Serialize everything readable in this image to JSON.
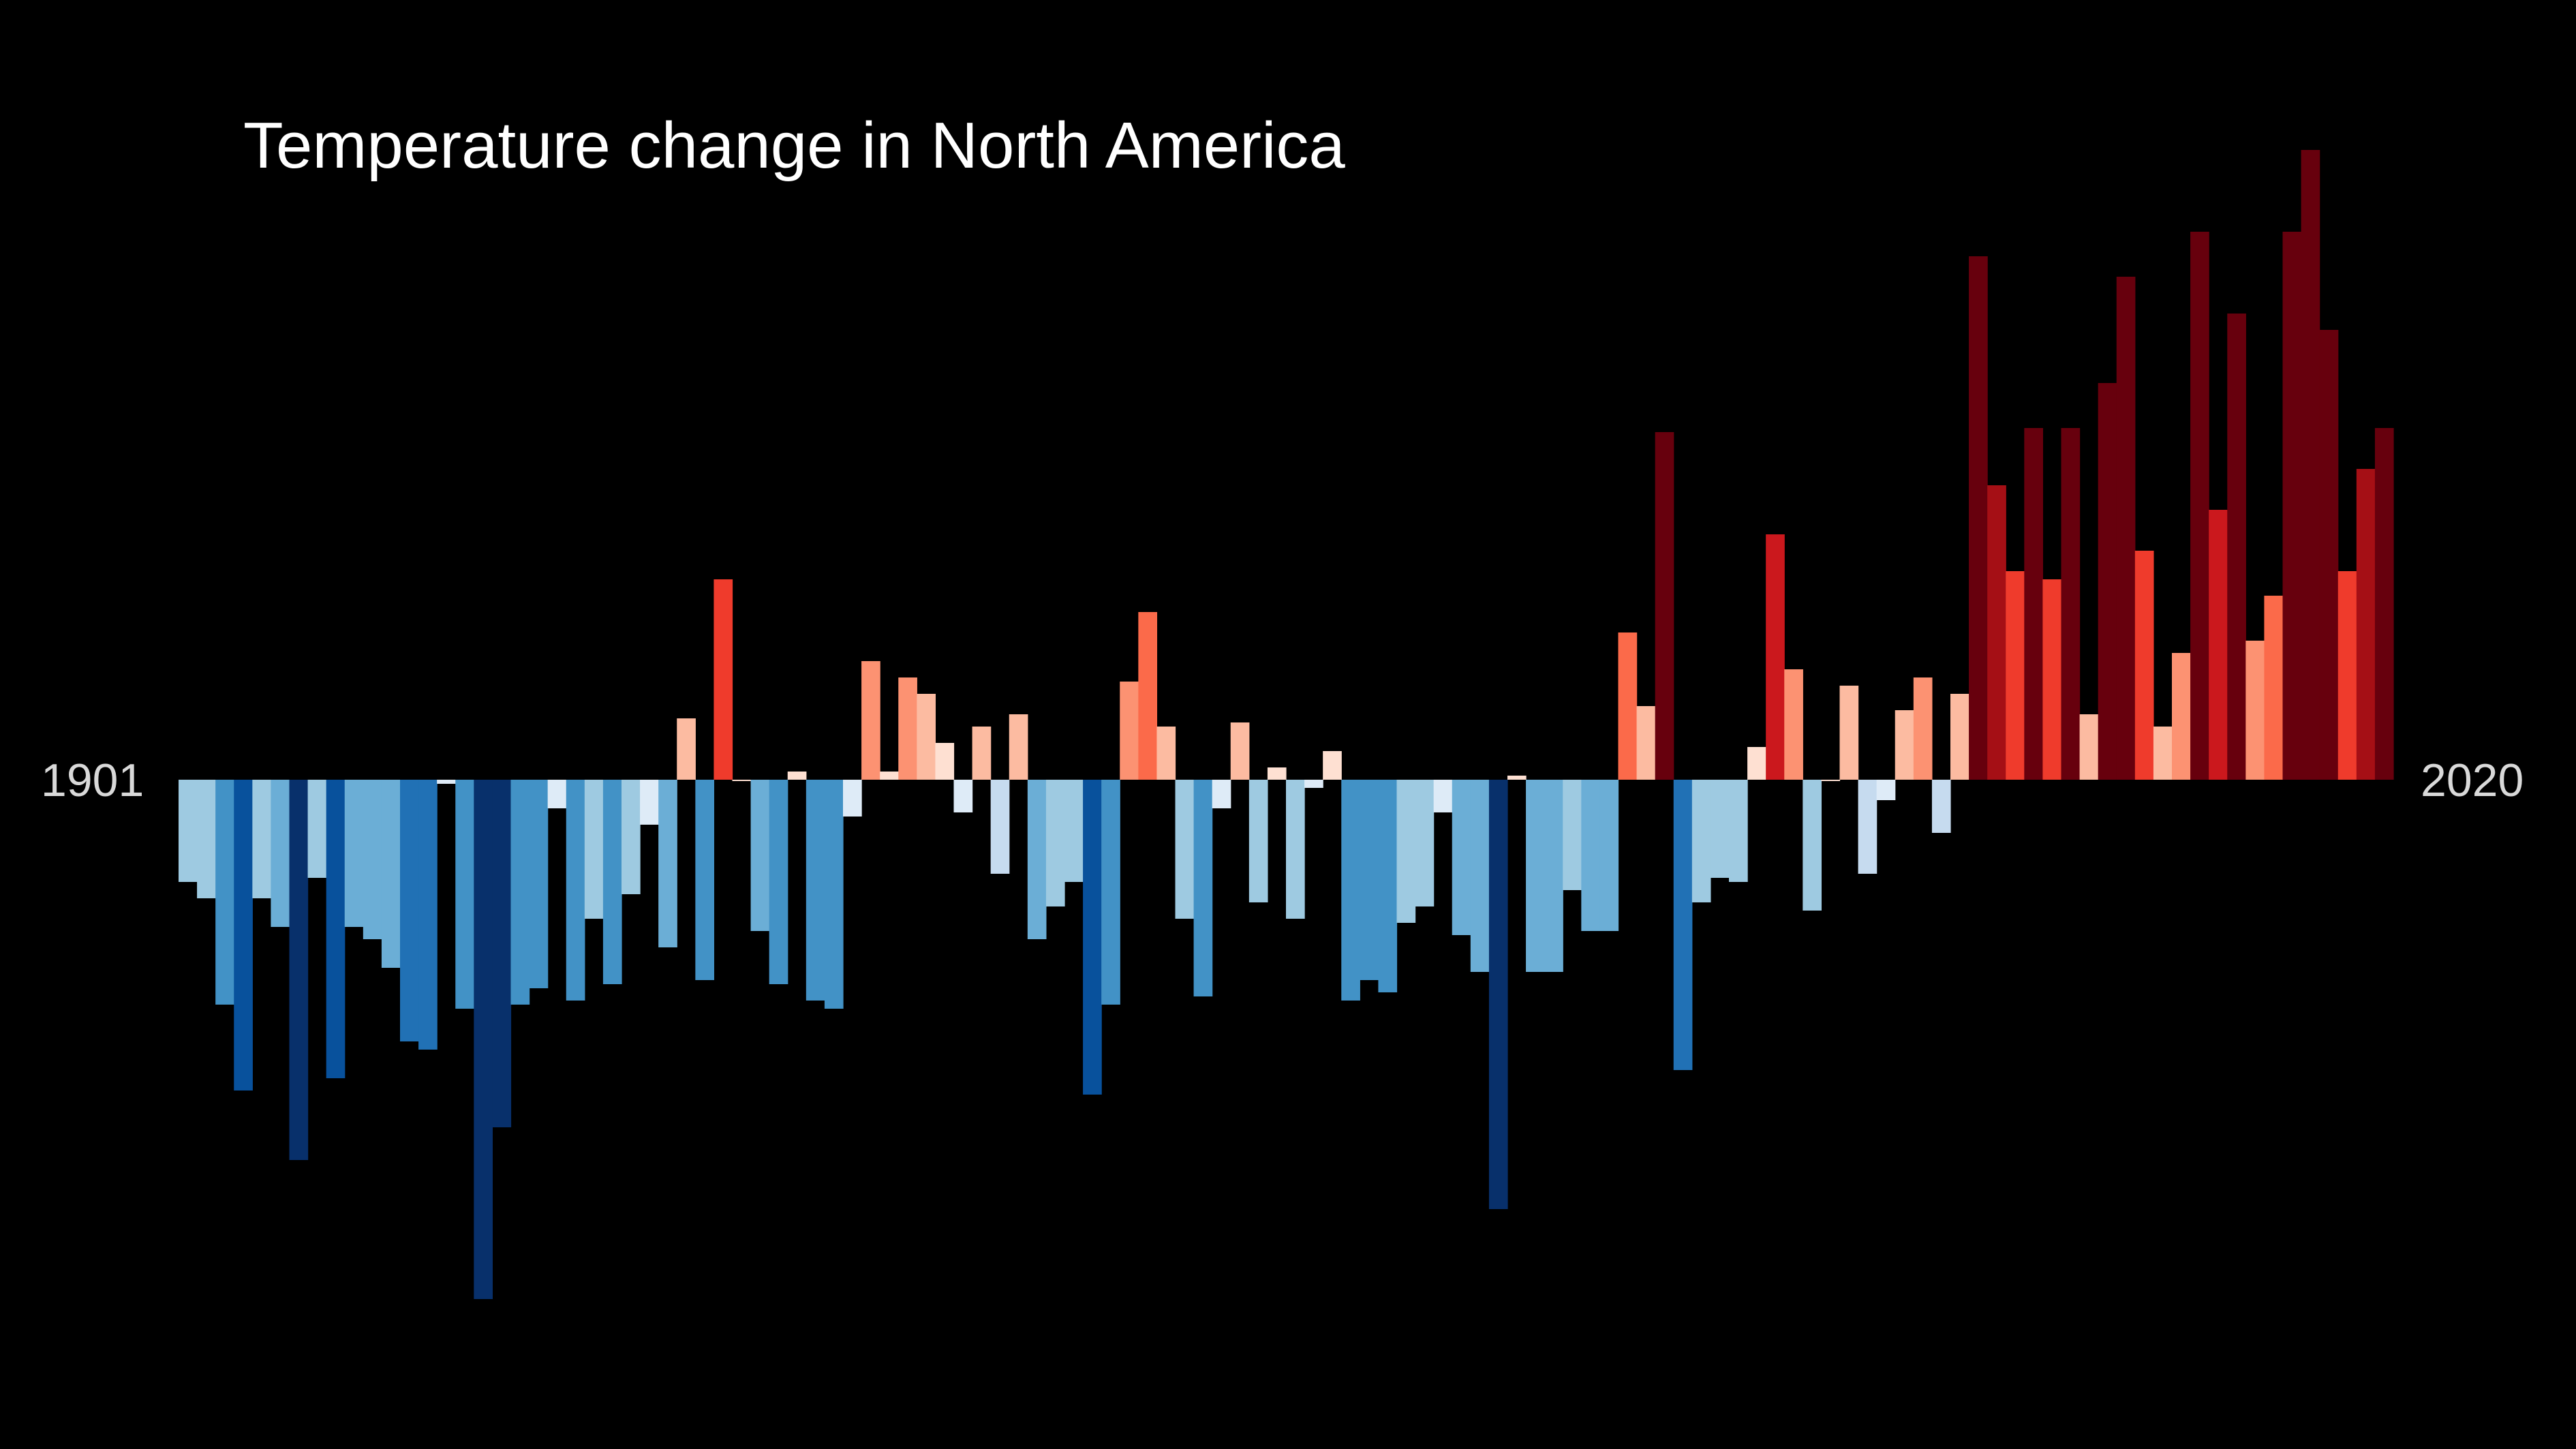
{
  "chart_data": {
    "type": "bar",
    "title": "Temperature change in North America",
    "start_label": "1901",
    "end_label": "2020",
    "year_start": 1901,
    "year_end": 2020,
    "ylim": [
      -1.33,
      1.6
    ],
    "grid": false,
    "legend": "none",
    "background": "#000000",
    "colormap": [
      "#08306b",
      "#08519c",
      "#2171b5",
      "#4292c6",
      "#6baed6",
      "#9ecae1",
      "#c6dbef",
      "#deebf7",
      "#fee0d2",
      "#fcbba1",
      "#fc9272",
      "#fb6a4a",
      "#ef3b2c",
      "#cb181d",
      "#a50f15",
      "#67000d"
    ],
    "values": [
      -0.25,
      -0.29,
      -0.55,
      -0.76,
      -0.29,
      -0.36,
      -0.93,
      -0.24,
      -0.73,
      -0.36,
      -0.39,
      -0.46,
      -0.64,
      -0.66,
      -0.01,
      -0.56,
      -1.27,
      -0.85,
      -0.55,
      -0.51,
      -0.07,
      -0.54,
      -0.34,
      -0.5,
      -0.28,
      -0.11,
      -0.41,
      0.15,
      -0.49,
      0.49,
      0.0,
      -0.37,
      -0.5,
      0.02,
      -0.54,
      -0.56,
      -0.09,
      0.29,
      0.02,
      0.25,
      0.21,
      0.09,
      -0.08,
      0.13,
      -0.23,
      0.16,
      -0.39,
      -0.31,
      -0.25,
      -0.77,
      -0.55,
      0.24,
      0.41,
      0.13,
      -0.34,
      -0.53,
      -0.07,
      0.14,
      -0.3,
      0.03,
      -0.34,
      -0.02,
      0.07,
      -0.54,
      -0.49,
      -0.52,
      -0.35,
      -0.31,
      -0.08,
      -0.38,
      -0.47,
      -1.05,
      0.01,
      -0.47,
      -0.47,
      -0.27,
      -0.37,
      -0.37,
      0.36,
      0.18,
      0.85,
      -0.71,
      -0.3,
      -0.24,
      -0.25,
      0.08,
      0.6,
      0.27,
      -0.32,
      0.0,
      0.23,
      -0.23,
      -0.05,
      0.17,
      0.25,
      -0.13,
      0.21,
      1.28,
      0.72,
      0.51,
      0.86,
      0.49,
      0.86,
      0.16,
      0.97,
      1.23,
      0.56,
      0.13,
      0.31,
      1.34,
      0.66,
      1.14,
      0.34,
      0.45,
      1.34,
      1.54,
      1.1,
      0.51,
      0.76,
      0.86
    ]
  }
}
